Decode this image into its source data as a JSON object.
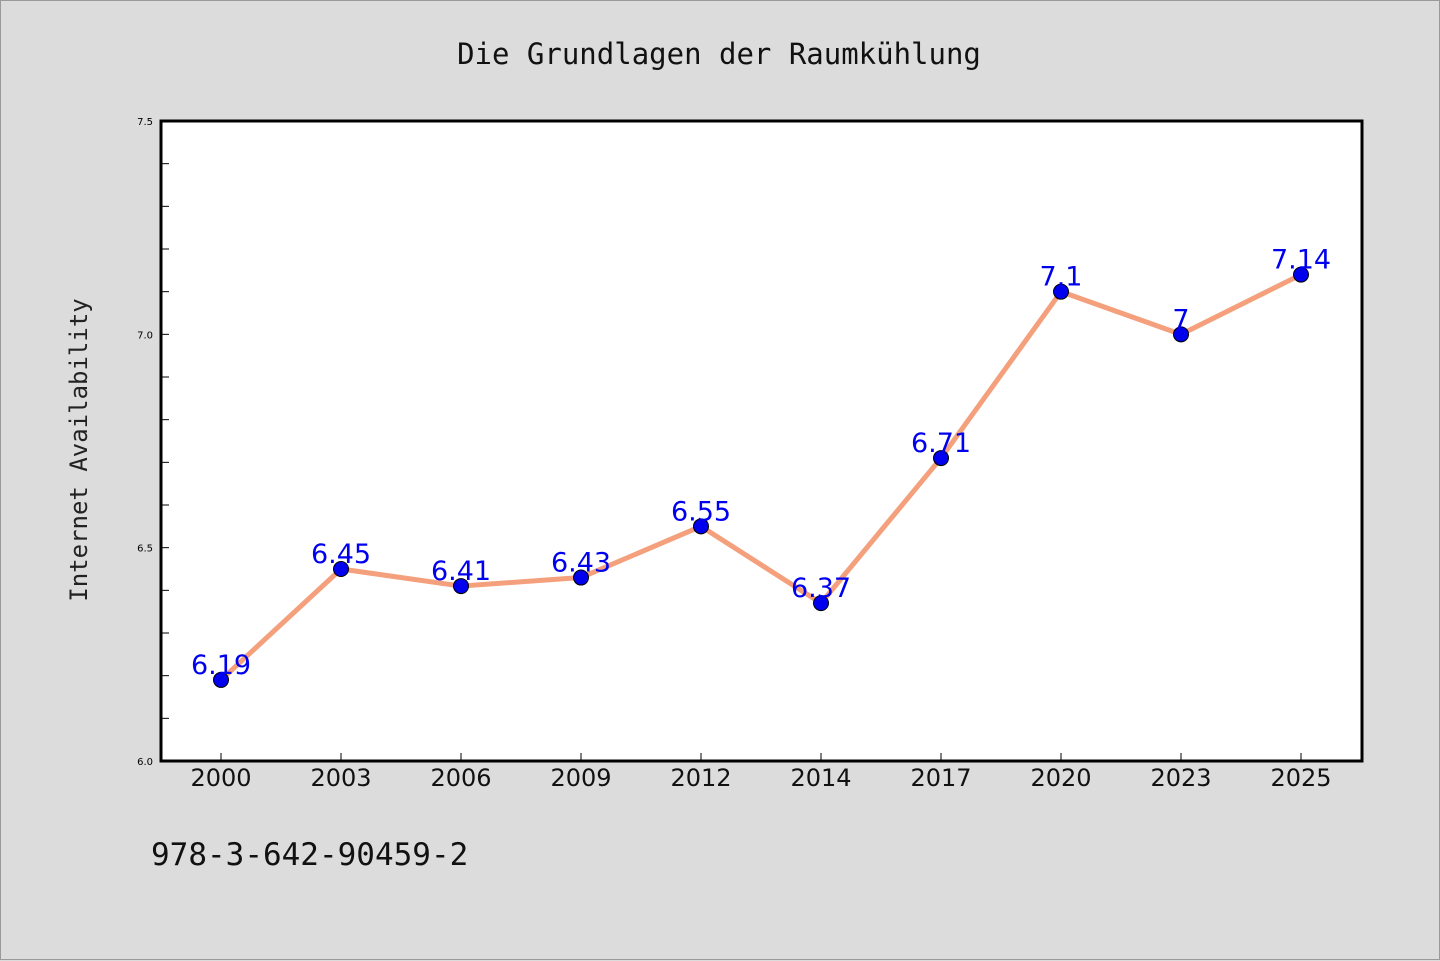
{
  "chart_data": {
    "type": "line",
    "title": "Die Grundlagen der Raumkühlung",
    "ylabel": "Internet Availability",
    "xlabel": "",
    "categories": [
      "2000",
      "2003",
      "2006",
      "2009",
      "2012",
      "2014",
      "2017",
      "2020",
      "2023",
      "2025"
    ],
    "series": [
      {
        "values": [
          6.19,
          6.45,
          6.41,
          6.43,
          6.55,
          6.37,
          6.71,
          7.1,
          7.0,
          7.14
        ],
        "labels": [
          "6.19",
          "6.45",
          "6.41",
          "6.43",
          "6.55",
          "6.37",
          "6.71",
          "7.1",
          "7",
          "7.14"
        ],
        "line_color": "#f4a07c",
        "marker_color": "#0000ee"
      }
    ],
    "ylim": [
      6.0,
      7.5
    ],
    "yticks": [
      "6.0",
      "6.5",
      "7.0",
      "7.5"
    ],
    "grid": false,
    "legend": "none"
  },
  "footer": {
    "code": "978-3-642-90459-2"
  }
}
